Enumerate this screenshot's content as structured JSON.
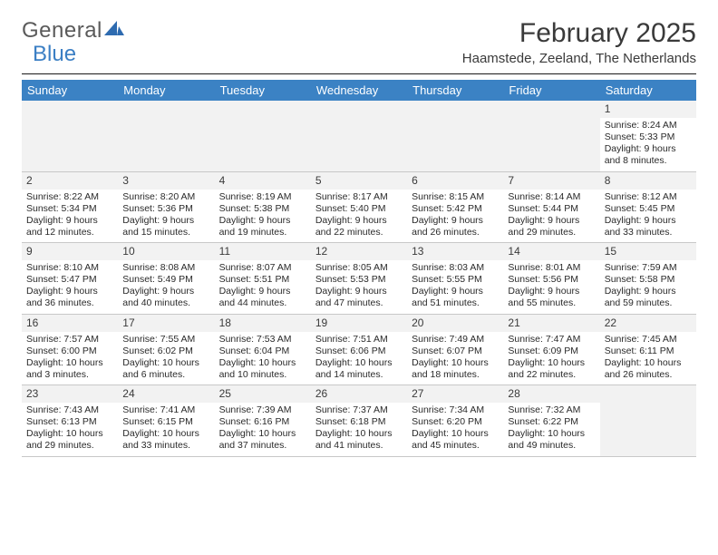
{
  "logo": {
    "text_main": "General",
    "text_accent": "Blue"
  },
  "title": "February 2025",
  "location": "Haamstede, Zeeland, The Netherlands",
  "colors": {
    "header_bg": "#3b82c4",
    "header_fg": "#ffffff",
    "daynum_bg": "#f2f2f2",
    "divider": "#1a1a1a",
    "grid_border": "#c8c8c8",
    "text": "#2a2a2a",
    "title_text": "#3a3a3a"
  },
  "typography": {
    "title_size_pt": 22,
    "location_size_pt": 11,
    "weekday_size_pt": 10,
    "cell_size_pt": 8
  },
  "weekdays": [
    "Sunday",
    "Monday",
    "Tuesday",
    "Wednesday",
    "Thursday",
    "Friday",
    "Saturday"
  ],
  "weeks": [
    [
      null,
      null,
      null,
      null,
      null,
      null,
      {
        "n": "1",
        "sunrise": "8:24 AM",
        "sunset": "5:33 PM",
        "daylight": "9 hours and 8 minutes."
      }
    ],
    [
      {
        "n": "2",
        "sunrise": "8:22 AM",
        "sunset": "5:34 PM",
        "daylight": "9 hours and 12 minutes."
      },
      {
        "n": "3",
        "sunrise": "8:20 AM",
        "sunset": "5:36 PM",
        "daylight": "9 hours and 15 minutes."
      },
      {
        "n": "4",
        "sunrise": "8:19 AM",
        "sunset": "5:38 PM",
        "daylight": "9 hours and 19 minutes."
      },
      {
        "n": "5",
        "sunrise": "8:17 AM",
        "sunset": "5:40 PM",
        "daylight": "9 hours and 22 minutes."
      },
      {
        "n": "6",
        "sunrise": "8:15 AM",
        "sunset": "5:42 PM",
        "daylight": "9 hours and 26 minutes."
      },
      {
        "n": "7",
        "sunrise": "8:14 AM",
        "sunset": "5:44 PM",
        "daylight": "9 hours and 29 minutes."
      },
      {
        "n": "8",
        "sunrise": "8:12 AM",
        "sunset": "5:45 PM",
        "daylight": "9 hours and 33 minutes."
      }
    ],
    [
      {
        "n": "9",
        "sunrise": "8:10 AM",
        "sunset": "5:47 PM",
        "daylight": "9 hours and 36 minutes."
      },
      {
        "n": "10",
        "sunrise": "8:08 AM",
        "sunset": "5:49 PM",
        "daylight": "9 hours and 40 minutes."
      },
      {
        "n": "11",
        "sunrise": "8:07 AM",
        "sunset": "5:51 PM",
        "daylight": "9 hours and 44 minutes."
      },
      {
        "n": "12",
        "sunrise": "8:05 AM",
        "sunset": "5:53 PM",
        "daylight": "9 hours and 47 minutes."
      },
      {
        "n": "13",
        "sunrise": "8:03 AM",
        "sunset": "5:55 PM",
        "daylight": "9 hours and 51 minutes."
      },
      {
        "n": "14",
        "sunrise": "8:01 AM",
        "sunset": "5:56 PM",
        "daylight": "9 hours and 55 minutes."
      },
      {
        "n": "15",
        "sunrise": "7:59 AM",
        "sunset": "5:58 PM",
        "daylight": "9 hours and 59 minutes."
      }
    ],
    [
      {
        "n": "16",
        "sunrise": "7:57 AM",
        "sunset": "6:00 PM",
        "daylight": "10 hours and 3 minutes."
      },
      {
        "n": "17",
        "sunrise": "7:55 AM",
        "sunset": "6:02 PM",
        "daylight": "10 hours and 6 minutes."
      },
      {
        "n": "18",
        "sunrise": "7:53 AM",
        "sunset": "6:04 PM",
        "daylight": "10 hours and 10 minutes."
      },
      {
        "n": "19",
        "sunrise": "7:51 AM",
        "sunset": "6:06 PM",
        "daylight": "10 hours and 14 minutes."
      },
      {
        "n": "20",
        "sunrise": "7:49 AM",
        "sunset": "6:07 PM",
        "daylight": "10 hours and 18 minutes."
      },
      {
        "n": "21",
        "sunrise": "7:47 AM",
        "sunset": "6:09 PM",
        "daylight": "10 hours and 22 minutes."
      },
      {
        "n": "22",
        "sunrise": "7:45 AM",
        "sunset": "6:11 PM",
        "daylight": "10 hours and 26 minutes."
      }
    ],
    [
      {
        "n": "23",
        "sunrise": "7:43 AM",
        "sunset": "6:13 PM",
        "daylight": "10 hours and 29 minutes."
      },
      {
        "n": "24",
        "sunrise": "7:41 AM",
        "sunset": "6:15 PM",
        "daylight": "10 hours and 33 minutes."
      },
      {
        "n": "25",
        "sunrise": "7:39 AM",
        "sunset": "6:16 PM",
        "daylight": "10 hours and 37 minutes."
      },
      {
        "n": "26",
        "sunrise": "7:37 AM",
        "sunset": "6:18 PM",
        "daylight": "10 hours and 41 minutes."
      },
      {
        "n": "27",
        "sunrise": "7:34 AM",
        "sunset": "6:20 PM",
        "daylight": "10 hours and 45 minutes."
      },
      {
        "n": "28",
        "sunrise": "7:32 AM",
        "sunset": "6:22 PM",
        "daylight": "10 hours and 49 minutes."
      },
      null
    ]
  ],
  "labels": {
    "sunrise": "Sunrise:",
    "sunset": "Sunset:",
    "daylight": "Daylight:"
  }
}
